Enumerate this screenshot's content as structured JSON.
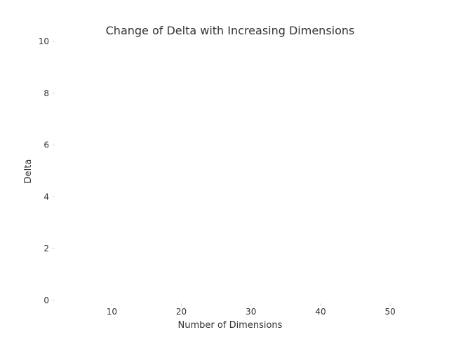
{
  "chart_data": {
    "type": "line",
    "title": "Change of Delta with Increasing Dimensions",
    "xlabel": "Number of Dimensions",
    "ylabel": "Delta",
    "xlim": [
      2,
      52
    ],
    "ylim": [
      0,
      10
    ],
    "xticks": [
      10,
      20,
      30,
      40,
      50
    ],
    "yticks": [
      0,
      2,
      4,
      6,
      8,
      10
    ],
    "grid": false,
    "series": []
  }
}
